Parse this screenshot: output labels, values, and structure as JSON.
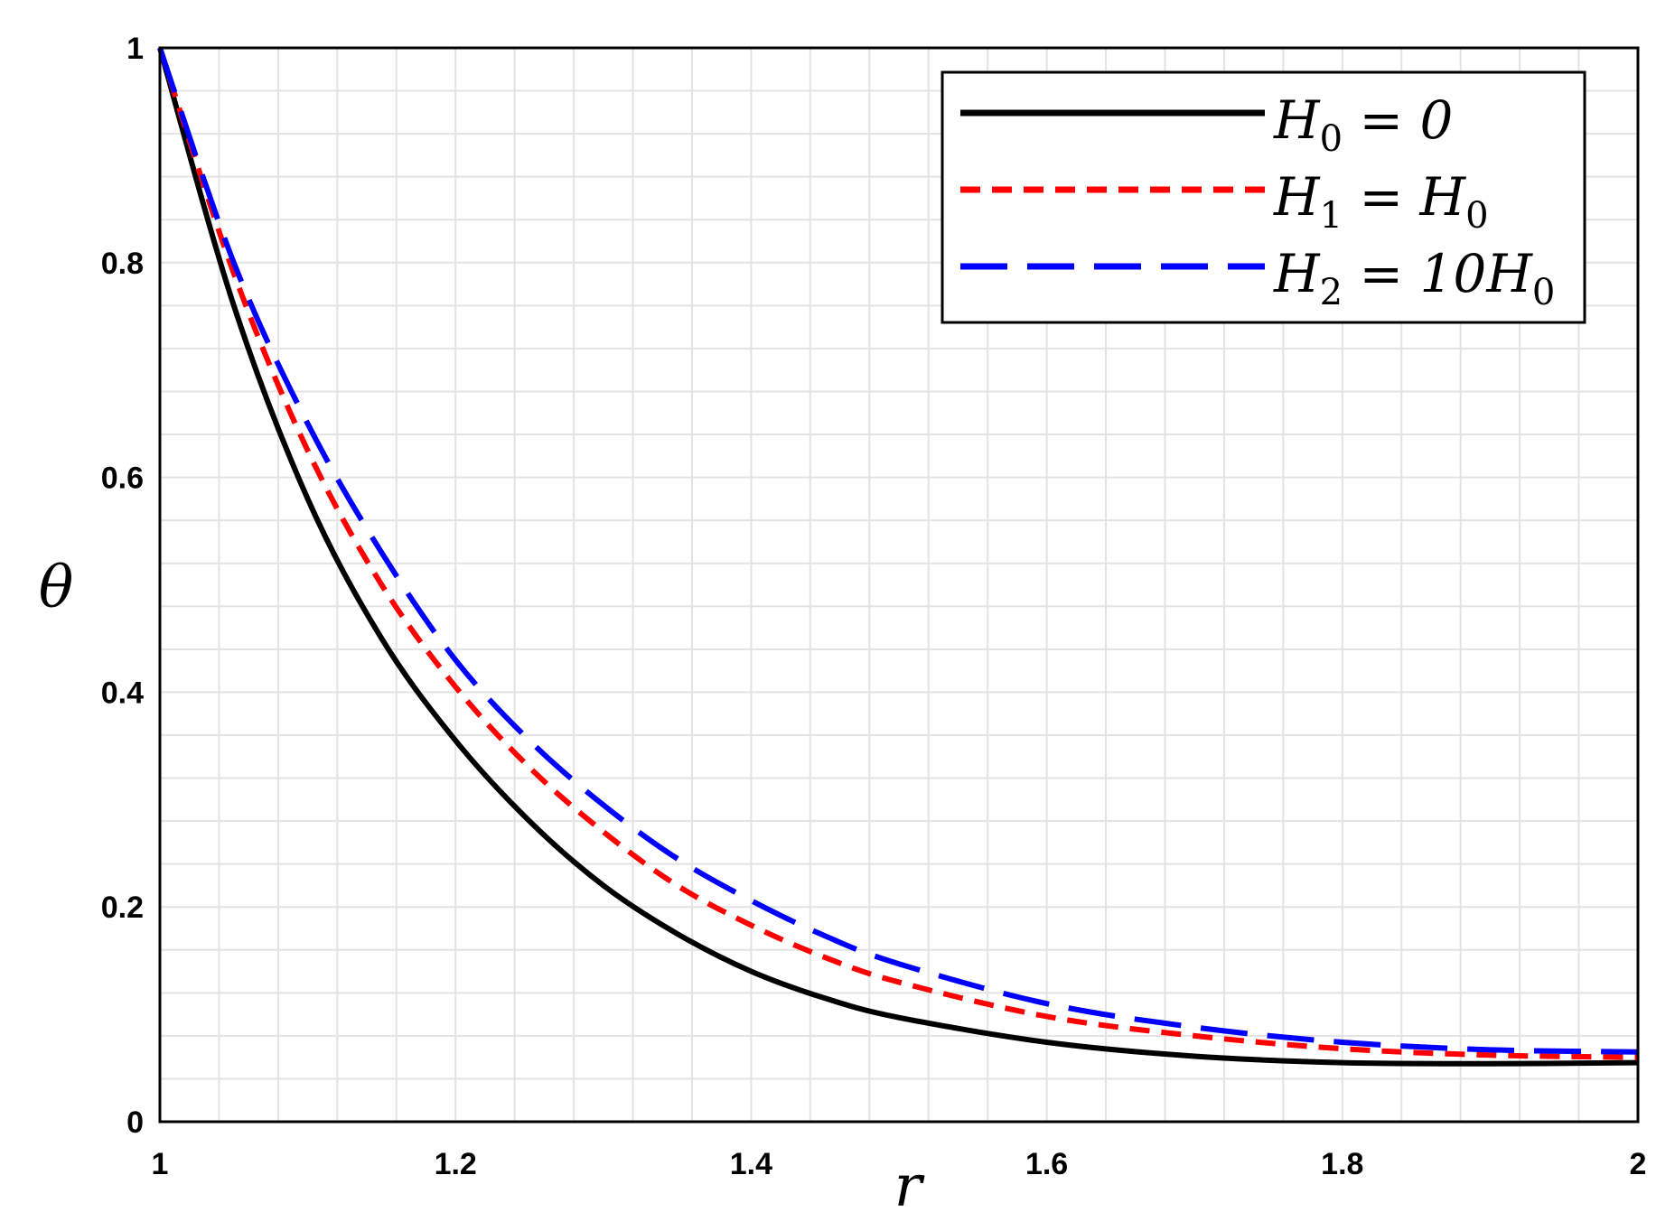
{
  "chart_data": {
    "type": "line",
    "title": "",
    "xlabel": "r",
    "ylabel": "θ",
    "xlim": [
      1,
      2
    ],
    "ylim": [
      0,
      1
    ],
    "x_ticks": [
      "1",
      "1.2",
      "1.4",
      "1.6",
      "1.8",
      "2"
    ],
    "y_ticks": [
      "0",
      "0.2",
      "0.4",
      "0.6",
      "0.8",
      "1"
    ],
    "grid": true,
    "legend_position": "top-right",
    "series": [
      {
        "name": "H0 = 0",
        "legend": {
          "base": "H",
          "sub": "0",
          "rest": " = 0"
        },
        "color": "#000000",
        "style": "solid",
        "x": [
          1.0,
          1.05,
          1.1,
          1.15,
          1.2,
          1.25,
          1.3,
          1.35,
          1.4,
          1.45,
          1.5,
          1.6,
          1.7,
          1.8,
          1.9,
          2.0
        ],
        "y": [
          1.0,
          0.76,
          0.58,
          0.45,
          0.355,
          0.28,
          0.22,
          0.175,
          0.14,
          0.115,
          0.097,
          0.074,
          0.061,
          0.055,
          0.054,
          0.055
        ]
      },
      {
        "name": "H1 = H0",
        "legend": {
          "base": "H",
          "sub": "1",
          "rest": " = H",
          "sub2": "0"
        },
        "color": "#ff0000",
        "style": "dashed",
        "x": [
          1.0,
          1.05,
          1.1,
          1.15,
          1.2,
          1.25,
          1.3,
          1.35,
          1.4,
          1.45,
          1.5,
          1.6,
          1.7,
          1.8,
          1.9,
          2.0
        ],
        "y": [
          1.0,
          0.79,
          0.625,
          0.5,
          0.405,
          0.33,
          0.27,
          0.22,
          0.183,
          0.153,
          0.13,
          0.098,
          0.08,
          0.068,
          0.062,
          0.06
        ]
      },
      {
        "name": "H2 = 10H0",
        "legend": {
          "base": "H",
          "sub": "2",
          "rest": " = 10H",
          "sub2": "0"
        },
        "color": "#0000ff",
        "style": "long-dashed",
        "x": [
          1.0,
          1.05,
          1.1,
          1.15,
          1.2,
          1.25,
          1.3,
          1.35,
          1.4,
          1.45,
          1.5,
          1.6,
          1.7,
          1.8,
          1.9,
          2.0
        ],
        "y": [
          1.0,
          0.8,
          0.65,
          0.53,
          0.43,
          0.355,
          0.295,
          0.245,
          0.206,
          0.173,
          0.147,
          0.11,
          0.088,
          0.074,
          0.067,
          0.065
        ]
      }
    ]
  }
}
